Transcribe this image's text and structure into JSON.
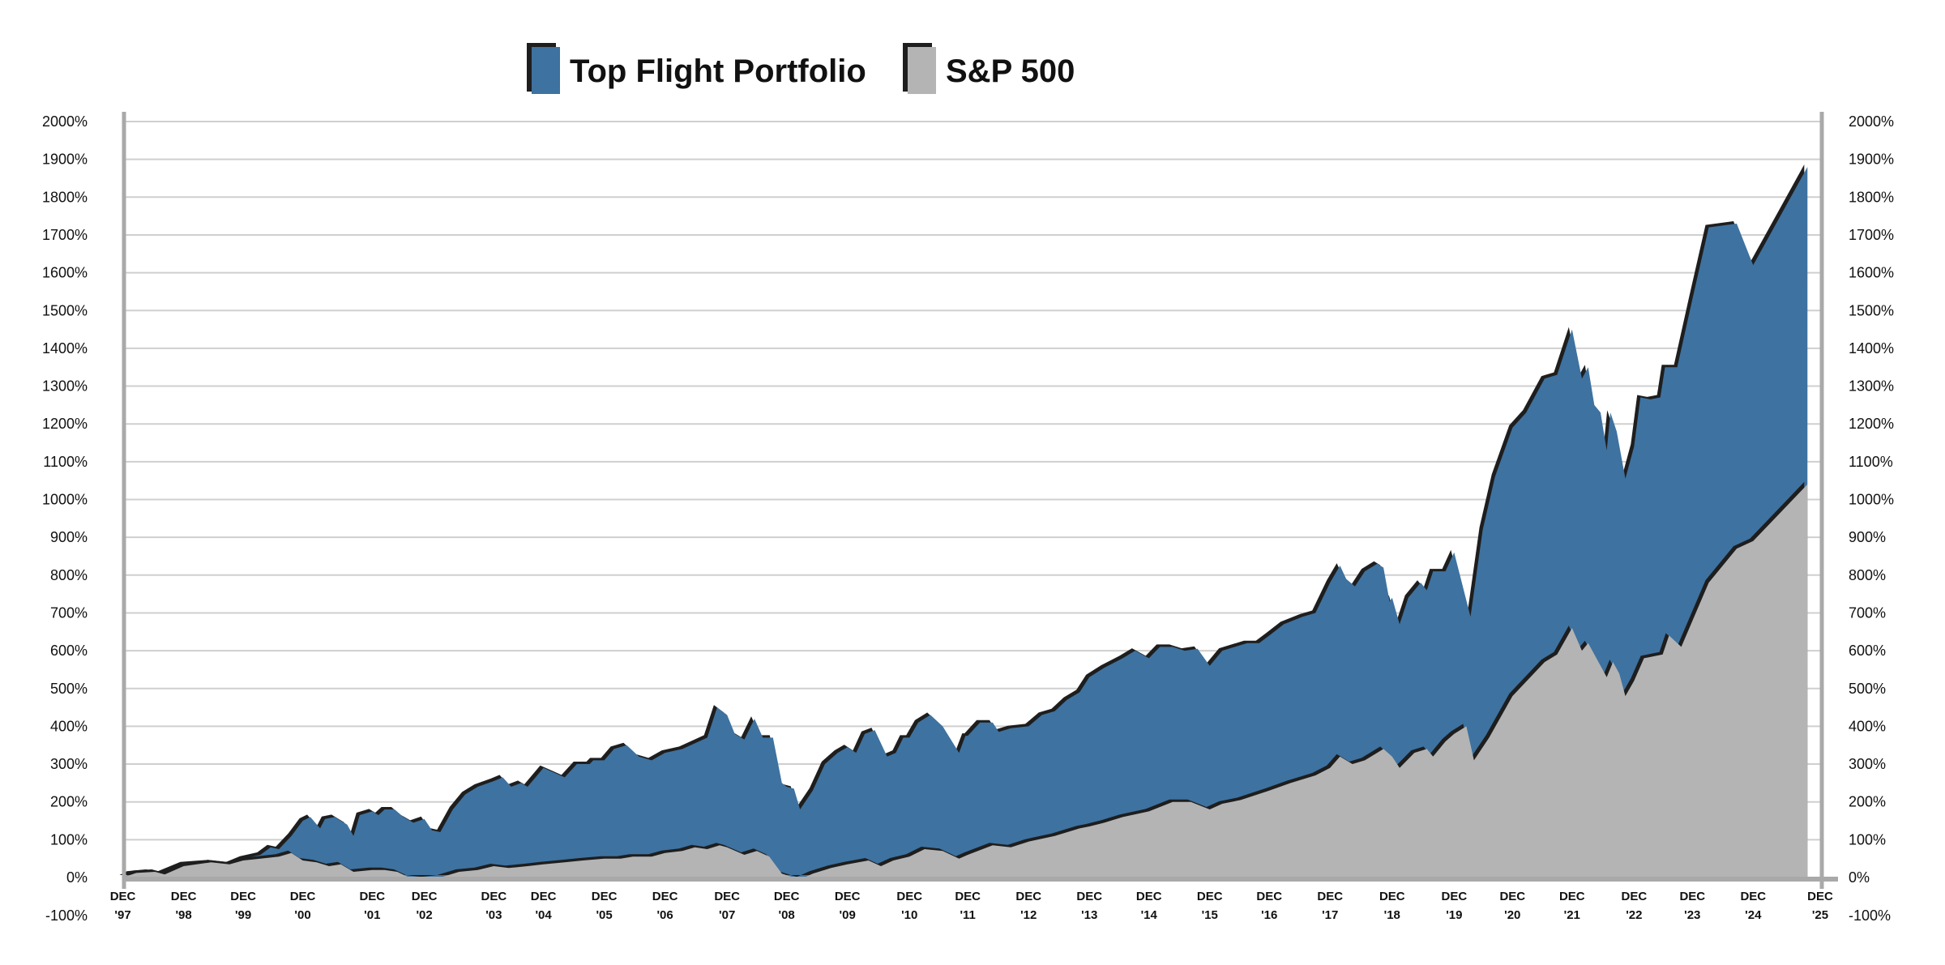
{
  "chart_data": {
    "type": "area",
    "title": "",
    "xlabel": "",
    "ylabel": "",
    "ylim": [
      -100,
      2000
    ],
    "y_ticks": [
      "2000%",
      "1900%",
      "1800%",
      "1700%",
      "1600%",
      "1500%",
      "1400%",
      "1300%",
      "1200%",
      "1100%",
      "1000%",
      "900%",
      "800%",
      "700%",
      "600%",
      "500%",
      "400%",
      "300%",
      "200%",
      "100%",
      "0%",
      "-100%"
    ],
    "y_tick_values": [
      2000,
      1900,
      1800,
      1700,
      1600,
      1500,
      1400,
      1300,
      1200,
      1100,
      1000,
      900,
      800,
      700,
      600,
      500,
      400,
      300,
      200,
      100,
      0,
      -100
    ],
    "x_ticks": [
      {
        "month": "DEC",
        "year": "'97"
      },
      {
        "month": "DEC",
        "year": "'98"
      },
      {
        "month": "DEC",
        "year": "'99"
      },
      {
        "month": "DEC",
        "year": "'00"
      },
      {
        "month": "DEC",
        "year": "'01"
      },
      {
        "month": "DEC",
        "year": "'02"
      },
      {
        "month": "DEC",
        "year": "'03"
      },
      {
        "month": "DEC",
        "year": "'04"
      },
      {
        "month": "DEC",
        "year": "'05"
      },
      {
        "month": "DEC",
        "year": "'06"
      },
      {
        "month": "DEC",
        "year": "'07"
      },
      {
        "month": "DEC",
        "year": "'08"
      },
      {
        "month": "DEC",
        "year": "'09"
      },
      {
        "month": "DEC",
        "year": "'10"
      },
      {
        "month": "DEC",
        "year": "'11"
      },
      {
        "month": "DEC",
        "year": "'12"
      },
      {
        "month": "DEC",
        "year": "'13"
      },
      {
        "month": "DEC",
        "year": "'14"
      },
      {
        "month": "DEC",
        "year": "'15"
      },
      {
        "month": "DEC",
        "year": "'16"
      },
      {
        "month": "DEC",
        "year": "'17"
      },
      {
        "month": "DEC",
        "year": "'18"
      },
      {
        "month": "DEC",
        "year": "'19"
      },
      {
        "month": "DEC",
        "year": "'20"
      },
      {
        "month": "DEC",
        "year": "'21"
      },
      {
        "month": "DEC",
        "year": "'22"
      },
      {
        "month": "DEC",
        "year": "'23"
      },
      {
        "month": "DEC",
        "year": "'24"
      },
      {
        "month": "DEC",
        "year": "'25"
      }
    ],
    "grid": true,
    "legend_position": "top-center",
    "unit": "%",
    "series": [
      {
        "name": "Top Flight Portfolio",
        "color": "#3e72a0",
        "points": [
          [
            1997.92,
            0
          ],
          [
            1998.04,
            10
          ],
          [
            1998.35,
            15
          ],
          [
            1998.55,
            10
          ],
          [
            1998.92,
            35
          ],
          [
            1999.38,
            40
          ],
          [
            1999.69,
            35
          ],
          [
            1999.92,
            50
          ],
          [
            2000.21,
            60
          ],
          [
            2000.38,
            80
          ],
          [
            2000.52,
            75
          ],
          [
            2000.73,
            110
          ],
          [
            2000.92,
            150
          ],
          [
            2001.03,
            160
          ],
          [
            2001.17,
            130
          ],
          [
            2001.24,
            155
          ],
          [
            2001.38,
            160
          ],
          [
            2001.56,
            140
          ],
          [
            2001.65,
            110
          ],
          [
            2001.74,
            165
          ],
          [
            2001.92,
            175
          ],
          [
            2002.04,
            165
          ],
          [
            2002.16,
            180
          ],
          [
            2002.35,
            180
          ],
          [
            2002.52,
            160
          ],
          [
            2002.71,
            145
          ],
          [
            2002.92,
            155
          ],
          [
            2003.03,
            125
          ],
          [
            2003.15,
            120
          ],
          [
            2003.33,
            180
          ],
          [
            2003.51,
            220
          ],
          [
            2003.69,
            240
          ],
          [
            2003.92,
            255
          ],
          [
            2004.1,
            265
          ],
          [
            2004.27,
            240
          ],
          [
            2004.47,
            250
          ],
          [
            2004.6,
            240
          ],
          [
            2004.92,
            290
          ],
          [
            2005.06,
            280
          ],
          [
            2005.27,
            265
          ],
          [
            2005.47,
            300
          ],
          [
            2005.68,
            300
          ],
          [
            2005.74,
            310
          ],
          [
            2005.92,
            310
          ],
          [
            2006.08,
            340
          ],
          [
            2006.29,
            350
          ],
          [
            2006.49,
            320
          ],
          [
            2006.7,
            310
          ],
          [
            2006.92,
            330
          ],
          [
            2007.2,
            340
          ],
          [
            2007.4,
            355
          ],
          [
            2007.6,
            370
          ],
          [
            2007.76,
            450
          ],
          [
            2007.92,
            430
          ],
          [
            2008.05,
            380
          ],
          [
            2008.21,
            365
          ],
          [
            2008.38,
            420
          ],
          [
            2008.52,
            370
          ],
          [
            2008.69,
            370
          ],
          [
            2008.84,
            250
          ],
          [
            2008.92,
            240
          ],
          [
            2009.04,
            235
          ],
          [
            2009.14,
            180
          ],
          [
            2009.35,
            230
          ],
          [
            2009.55,
            300
          ],
          [
            2009.76,
            330
          ],
          [
            2009.92,
            345
          ],
          [
            2010.06,
            330
          ],
          [
            2010.2,
            380
          ],
          [
            2010.36,
            390
          ],
          [
            2010.56,
            320
          ],
          [
            2010.7,
            330
          ],
          [
            2010.82,
            370
          ],
          [
            2010.92,
            370
          ],
          [
            2011.07,
            410
          ],
          [
            2011.28,
            430
          ],
          [
            2011.49,
            400
          ],
          [
            2011.77,
            330
          ],
          [
            2011.88,
            375
          ],
          [
            2011.92,
            375
          ],
          [
            2012.12,
            410
          ],
          [
            2012.33,
            410
          ],
          [
            2012.43,
            385
          ],
          [
            2012.63,
            395
          ],
          [
            2012.92,
            400
          ],
          [
            2013.14,
            430
          ],
          [
            2013.35,
            440
          ],
          [
            2013.55,
            470
          ],
          [
            2013.76,
            490
          ],
          [
            2013.92,
            530
          ],
          [
            2014.17,
            555
          ],
          [
            2014.48,
            580
          ],
          [
            2014.69,
            600
          ],
          [
            2014.92,
            580
          ],
          [
            2015.1,
            610
          ],
          [
            2015.31,
            610
          ],
          [
            2015.51,
            600
          ],
          [
            2015.72,
            605
          ],
          [
            2015.92,
            560
          ],
          [
            2016.13,
            600
          ],
          [
            2016.34,
            610
          ],
          [
            2016.55,
            620
          ],
          [
            2016.75,
            620
          ],
          [
            2016.92,
            640
          ],
          [
            2017.16,
            670
          ],
          [
            2017.47,
            690
          ],
          [
            2017.68,
            700
          ],
          [
            2017.92,
            780
          ],
          [
            2018.08,
            825
          ],
          [
            2018.18,
            790
          ],
          [
            2018.32,
            770
          ],
          [
            2018.48,
            810
          ],
          [
            2018.68,
            830
          ],
          [
            2018.78,
            820
          ],
          [
            2018.88,
            730
          ],
          [
            2018.92,
            740
          ],
          [
            2019.04,
            670
          ],
          [
            2019.18,
            740
          ],
          [
            2019.38,
            780
          ],
          [
            2019.48,
            760
          ],
          [
            2019.58,
            810
          ],
          [
            2019.78,
            810
          ],
          [
            2019.92,
            860
          ],
          [
            2020.2,
            690
          ],
          [
            2020.41,
            920
          ],
          [
            2020.62,
            1060
          ],
          [
            2020.92,
            1190
          ],
          [
            2021.15,
            1230
          ],
          [
            2021.46,
            1320
          ],
          [
            2021.67,
            1330
          ],
          [
            2021.92,
            1450
          ],
          [
            2022.08,
            1320
          ],
          [
            2022.18,
            1350
          ],
          [
            2022.28,
            1250
          ],
          [
            2022.38,
            1230
          ],
          [
            2022.48,
            1130
          ],
          [
            2022.54,
            1230
          ],
          [
            2022.64,
            1180
          ],
          [
            2022.78,
            1055
          ],
          [
            2022.92,
            1140
          ],
          [
            2023.03,
            1270
          ],
          [
            2023.2,
            1265
          ],
          [
            2023.37,
            1270
          ],
          [
            2023.45,
            1350
          ],
          [
            2023.66,
            1350
          ],
          [
            2023.92,
            1530
          ],
          [
            2024.19,
            1720
          ],
          [
            2024.65,
            1730
          ],
          [
            2024.92,
            1620
          ],
          [
            2025.73,
            1880
          ]
        ]
      },
      {
        "name": "S&P 500",
        "color": "#b4b4b4",
        "points": [
          [
            1997.92,
            0
          ],
          [
            1998.14,
            12
          ],
          [
            1998.45,
            15
          ],
          [
            1998.61,
            8
          ],
          [
            1998.92,
            30
          ],
          [
            1999.38,
            40
          ],
          [
            1999.69,
            35
          ],
          [
            1999.92,
            45
          ],
          [
            2000.21,
            50
          ],
          [
            2000.52,
            55
          ],
          [
            2000.73,
            65
          ],
          [
            2000.92,
            45
          ],
          [
            2001.12,
            40
          ],
          [
            2001.3,
            30
          ],
          [
            2001.47,
            35
          ],
          [
            2001.65,
            15
          ],
          [
            2001.92,
            20
          ],
          [
            2002.16,
            20
          ],
          [
            2002.4,
            15
          ],
          [
            2002.63,
            0
          ],
          [
            2002.92,
            -5
          ],
          [
            2003.15,
            0
          ],
          [
            2003.42,
            15
          ],
          [
            2003.69,
            20
          ],
          [
            2003.92,
            30
          ],
          [
            2004.22,
            25
          ],
          [
            2004.6,
            30
          ],
          [
            2004.92,
            35
          ],
          [
            2005.27,
            40
          ],
          [
            2005.57,
            45
          ],
          [
            2005.92,
            50
          ],
          [
            2006.19,
            50
          ],
          [
            2006.39,
            55
          ],
          [
            2006.7,
            55
          ],
          [
            2006.92,
            65
          ],
          [
            2007.2,
            70
          ],
          [
            2007.4,
            80
          ],
          [
            2007.6,
            75
          ],
          [
            2007.8,
            85
          ],
          [
            2007.92,
            80
          ],
          [
            2008.21,
            60
          ],
          [
            2008.42,
            70
          ],
          [
            2008.63,
            55
          ],
          [
            2008.84,
            10
          ],
          [
            2009.04,
            0
          ],
          [
            2009.14,
            -5
          ],
          [
            2009.35,
            10
          ],
          [
            2009.65,
            25
          ],
          [
            2009.92,
            35
          ],
          [
            2010.26,
            45
          ],
          [
            2010.46,
            30
          ],
          [
            2010.66,
            45
          ],
          [
            2010.92,
            55
          ],
          [
            2011.18,
            75
          ],
          [
            2011.49,
            70
          ],
          [
            2011.77,
            50
          ],
          [
            2011.92,
            60
          ],
          [
            2012.33,
            85
          ],
          [
            2012.63,
            80
          ],
          [
            2012.92,
            95
          ],
          [
            2013.35,
            110
          ],
          [
            2013.76,
            130
          ],
          [
            2013.92,
            135
          ],
          [
            2014.17,
            145
          ],
          [
            2014.48,
            160
          ],
          [
            2014.92,
            175
          ],
          [
            2015.31,
            200
          ],
          [
            2015.61,
            200
          ],
          [
            2015.92,
            180
          ],
          [
            2016.13,
            195
          ],
          [
            2016.44,
            205
          ],
          [
            2016.92,
            230
          ],
          [
            2017.27,
            250
          ],
          [
            2017.68,
            270
          ],
          [
            2017.92,
            290
          ],
          [
            2018.08,
            320
          ],
          [
            2018.28,
            300
          ],
          [
            2018.48,
            310
          ],
          [
            2018.78,
            340
          ],
          [
            2018.92,
            320
          ],
          [
            2019.04,
            290
          ],
          [
            2019.28,
            330
          ],
          [
            2019.48,
            340
          ],
          [
            2019.58,
            320
          ],
          [
            2019.78,
            360
          ],
          [
            2019.92,
            380
          ],
          [
            2020.13,
            400
          ],
          [
            2020.26,
            310
          ],
          [
            2020.52,
            370
          ],
          [
            2020.92,
            480
          ],
          [
            2021.46,
            570
          ],
          [
            2021.67,
            590
          ],
          [
            2021.92,
            660
          ],
          [
            2022.08,
            600
          ],
          [
            2022.18,
            620
          ],
          [
            2022.38,
            560
          ],
          [
            2022.48,
            530
          ],
          [
            2022.58,
            570
          ],
          [
            2022.68,
            540
          ],
          [
            2022.78,
            480
          ],
          [
            2022.92,
            520
          ],
          [
            2023.09,
            580
          ],
          [
            2023.41,
            590
          ],
          [
            2023.52,
            640
          ],
          [
            2023.73,
            610
          ],
          [
            2024.19,
            780
          ],
          [
            2024.65,
            870
          ],
          [
            2024.92,
            890
          ],
          [
            2025.73,
            1040
          ]
        ]
      }
    ]
  },
  "legend": {
    "items": [
      {
        "label": "Top Flight Portfolio",
        "color": "#3e72a0"
      },
      {
        "label": "S&P 500",
        "color": "#b4b4b4"
      }
    ]
  }
}
